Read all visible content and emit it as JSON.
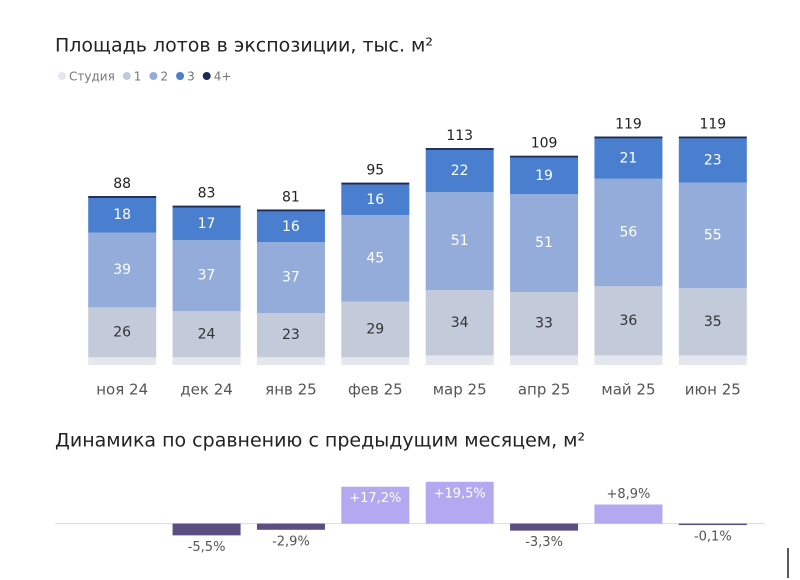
{
  "chart_data": [
    {
      "type": "stacked_bar",
      "title": "Площадь лотов в экспозиции, тыс. м²",
      "categories": [
        "ноя 24",
        "дек 24",
        "янв 25",
        "фев 25",
        "мар 25",
        "апр 25",
        "май 25",
        "июн 25"
      ],
      "series": [
        {
          "name": "Студия",
          "color": "#e4e7ee",
          "label_color": "#333",
          "show_labels": false,
          "values": [
            4,
            4,
            4,
            4,
            5,
            5,
            5,
            5
          ]
        },
        {
          "name": "1",
          "color": "#c3cbdb",
          "label_color": "#333",
          "show_labels": true,
          "values": [
            26,
            24,
            23,
            29,
            34,
            33,
            36,
            35
          ]
        },
        {
          "name": "2",
          "color": "#94acd9",
          "label_color": "#fff",
          "show_labels": true,
          "values": [
            39,
            37,
            37,
            45,
            51,
            51,
            56,
            55
          ]
        },
        {
          "name": "3",
          "color": "#4a7fcf",
          "label_color": "#fff",
          "show_labels": true,
          "values": [
            18,
            17,
            16,
            16,
            22,
            19,
            21,
            23
          ]
        },
        {
          "name": "4+",
          "color": "#1b2a55",
          "label_color": "#fff",
          "show_labels": false,
          "values": [
            1,
            1,
            1,
            1,
            1,
            1,
            1,
            1
          ]
        }
      ],
      "totals": [
        88,
        83,
        81,
        95,
        113,
        109,
        119,
        119
      ],
      "ylim": [
        0,
        125
      ]
    },
    {
      "type": "bar",
      "title": "Динамика по сравнению с предыдущим месяцем, м²",
      "values": [
        null,
        -5.5,
        -2.9,
        17.2,
        19.5,
        -3.3,
        8.9,
        -0.1
      ],
      "value_labels": [
        null,
        "-5,5%",
        "-2,9%",
        "+17,2%",
        "+19,5%",
        "-3,3%",
        "+8,9%",
        "-0,1%"
      ],
      "positive_color": "#b4a8f0",
      "negative_color": "#5a4f80",
      "ylim": [
        -10,
        25
      ]
    }
  ]
}
